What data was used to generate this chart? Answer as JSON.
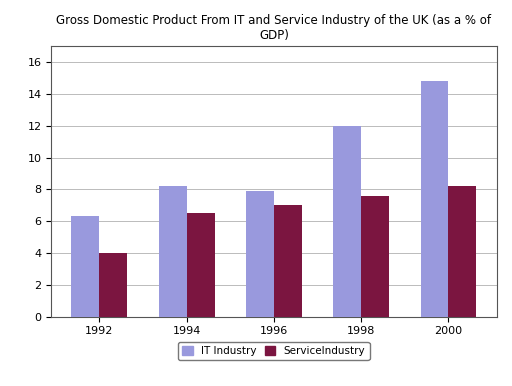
{
  "title": "Gross Domestic Product From IT and Service Industry of the UK (as a % of\nGDP)",
  "years": [
    "1992",
    "1994",
    "1996",
    "1998",
    "2000"
  ],
  "it_industry": [
    6.3,
    8.2,
    7.9,
    12.0,
    14.8
  ],
  "service_industry": [
    4.0,
    6.5,
    7.0,
    7.6,
    8.2
  ],
  "it_color": "#9999dd",
  "service_color": "#7b1540",
  "bar_width": 0.32,
  "ylim": [
    0,
    17
  ],
  "yticks": [
    0,
    2,
    4,
    6,
    8,
    10,
    12,
    14,
    16
  ],
  "legend_labels": [
    "IT Industry",
    "ServiceIndustry"
  ],
  "title_fontsize": 8.5,
  "tick_fontsize": 8,
  "legend_fontsize": 7.5,
  "bg_color": "#ffffff",
  "figure_bg": "#ffffff",
  "grid_color": "#bbbbbb",
  "border_color": "#555555"
}
